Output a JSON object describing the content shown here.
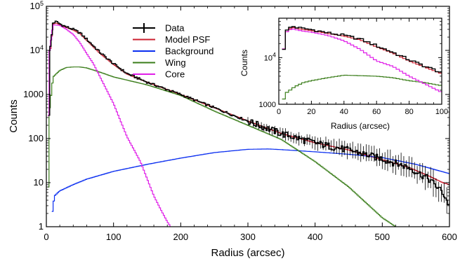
{
  "chart_data": [
    {
      "type": "line",
      "title": "",
      "xlabel": "Radius (arcsec)",
      "ylabel": "Counts",
      "xlim": [
        0,
        600
      ],
      "ylim": [
        1,
        100000
      ],
      "yscale": "log",
      "step": true,
      "x_ticks": [
        "0",
        "100",
        "200",
        "300",
        "400",
        "500",
        "600"
      ],
      "y_ticks": [
        "1",
        "10",
        "100",
        "1000",
        "10^4",
        "10^5"
      ],
      "legend_position": "top-center",
      "series": [
        {
          "name": "Data",
          "color": "#000000",
          "errorbars": true,
          "x": [
            3,
            6,
            10,
            15,
            20,
            30,
            40,
            50,
            60,
            80,
            100,
            120,
            150,
            200,
            250,
            300,
            350,
            400,
            450,
            500,
            540,
            570,
            590,
            600
          ],
          "y": [
            60,
            12000,
            42000,
            45000,
            40000,
            34000,
            30000,
            25000,
            18000,
            9000,
            5000,
            3000,
            1900,
            1000,
            500,
            250,
            130,
            80,
            55,
            35,
            22,
            12,
            6,
            3
          ]
        },
        {
          "name": "Model PSF",
          "color": "#cc1f2f",
          "x": [
            3,
            6,
            10,
            15,
            20,
            30,
            40,
            50,
            60,
            80,
            100,
            120,
            150,
            200,
            250,
            300,
            350,
            400,
            450,
            500,
            540,
            570,
            590,
            600
          ],
          "y": [
            60,
            11000,
            40000,
            42000,
            38000,
            33000,
            29000,
            24000,
            17000,
            8500,
            4800,
            2900,
            1900,
            1000,
            500,
            250,
            130,
            80,
            55,
            33,
            22,
            14,
            10,
            9
          ]
        },
        {
          "name": "Background",
          "color": "#0a2ef0",
          "x": [
            8,
            12,
            20,
            40,
            60,
            100,
            150,
            200,
            250,
            300,
            330,
            350,
            400,
            450,
            500,
            550,
            600
          ],
          "y": [
            1.7,
            5,
            6.5,
            9,
            12,
            18,
            26,
            36,
            48,
            57,
            58,
            56,
            50,
            44,
            37,
            26,
            16
          ]
        },
        {
          "name": "Wing",
          "color": "#3a7d1a",
          "x": [
            2,
            5,
            10,
            20,
            30,
            40,
            50,
            60,
            80,
            100,
            150,
            200,
            250,
            300,
            350,
            400,
            450,
            500,
            520
          ],
          "y": [
            1,
            500,
            2500,
            3500,
            4100,
            4200,
            4200,
            4000,
            3200,
            2500,
            1650,
            950,
            420,
            200,
            95,
            30,
            8,
            1.6,
            1
          ]
        },
        {
          "name": "Core",
          "color": "#e020e8",
          "x": [
            2,
            5,
            10,
            20,
            30,
            40,
            50,
            60,
            70,
            80,
            100,
            120,
            140,
            160,
            170,
            180,
            185
          ],
          "y": [
            60,
            10000,
            38000,
            37000,
            30000,
            23000,
            15000,
            8500,
            5000,
            2500,
            620,
            110,
            30,
            5,
            2.5,
            1.3,
            1
          ]
        }
      ]
    },
    {
      "type": "line",
      "title": "",
      "xlabel": "Radius (arcsec)",
      "ylabel": "Counts",
      "xlim": [
        0,
        100
      ],
      "ylim": [
        1000,
        70000
      ],
      "yscale": "log",
      "step": true,
      "x_ticks": [
        "0",
        "20",
        "40",
        "60",
        "80",
        "100"
      ],
      "y_ticks": [
        "10^4",
        "1000"
      ],
      "series": [
        {
          "name": "Data",
          "color": "#000000",
          "x": [
            2,
            5,
            8,
            10,
            15,
            20,
            30,
            40,
            50,
            60,
            70,
            80,
            90,
            100
          ],
          "y": [
            10000,
            38000,
            48000,
            45000,
            42000,
            40000,
            34000,
            30000,
            25000,
            18000,
            13000,
            9000,
            6500,
            4800
          ]
        },
        {
          "name": "Model PSF",
          "color": "#cc1f2f",
          "x": [
            2,
            5,
            8,
            10,
            15,
            20,
            30,
            40,
            50,
            60,
            70,
            80,
            90,
            100
          ],
          "y": [
            10000,
            36000,
            45000,
            43000,
            40000,
            38000,
            33000,
            29000,
            24000,
            17000,
            12500,
            8500,
            6200,
            4500
          ]
        },
        {
          "name": "Wing",
          "color": "#3a7d1a",
          "x": [
            2,
            5,
            10,
            15,
            20,
            30,
            40,
            50,
            60,
            70,
            80,
            90,
            100
          ],
          "y": [
            1100,
            1800,
            2400,
            2900,
            3200,
            3700,
            4200,
            4100,
            4000,
            3700,
            3200,
            2900,
            2500
          ]
        },
        {
          "name": "Core",
          "color": "#e020e8",
          "x": [
            2,
            5,
            8,
            10,
            15,
            20,
            30,
            40,
            50,
            60,
            70,
            80,
            90,
            100
          ],
          "y": [
            10000,
            36000,
            42000,
            40000,
            37000,
            35000,
            30000,
            23000,
            15000,
            8500,
            6500,
            4000,
            2700,
            1800
          ]
        }
      ]
    }
  ]
}
